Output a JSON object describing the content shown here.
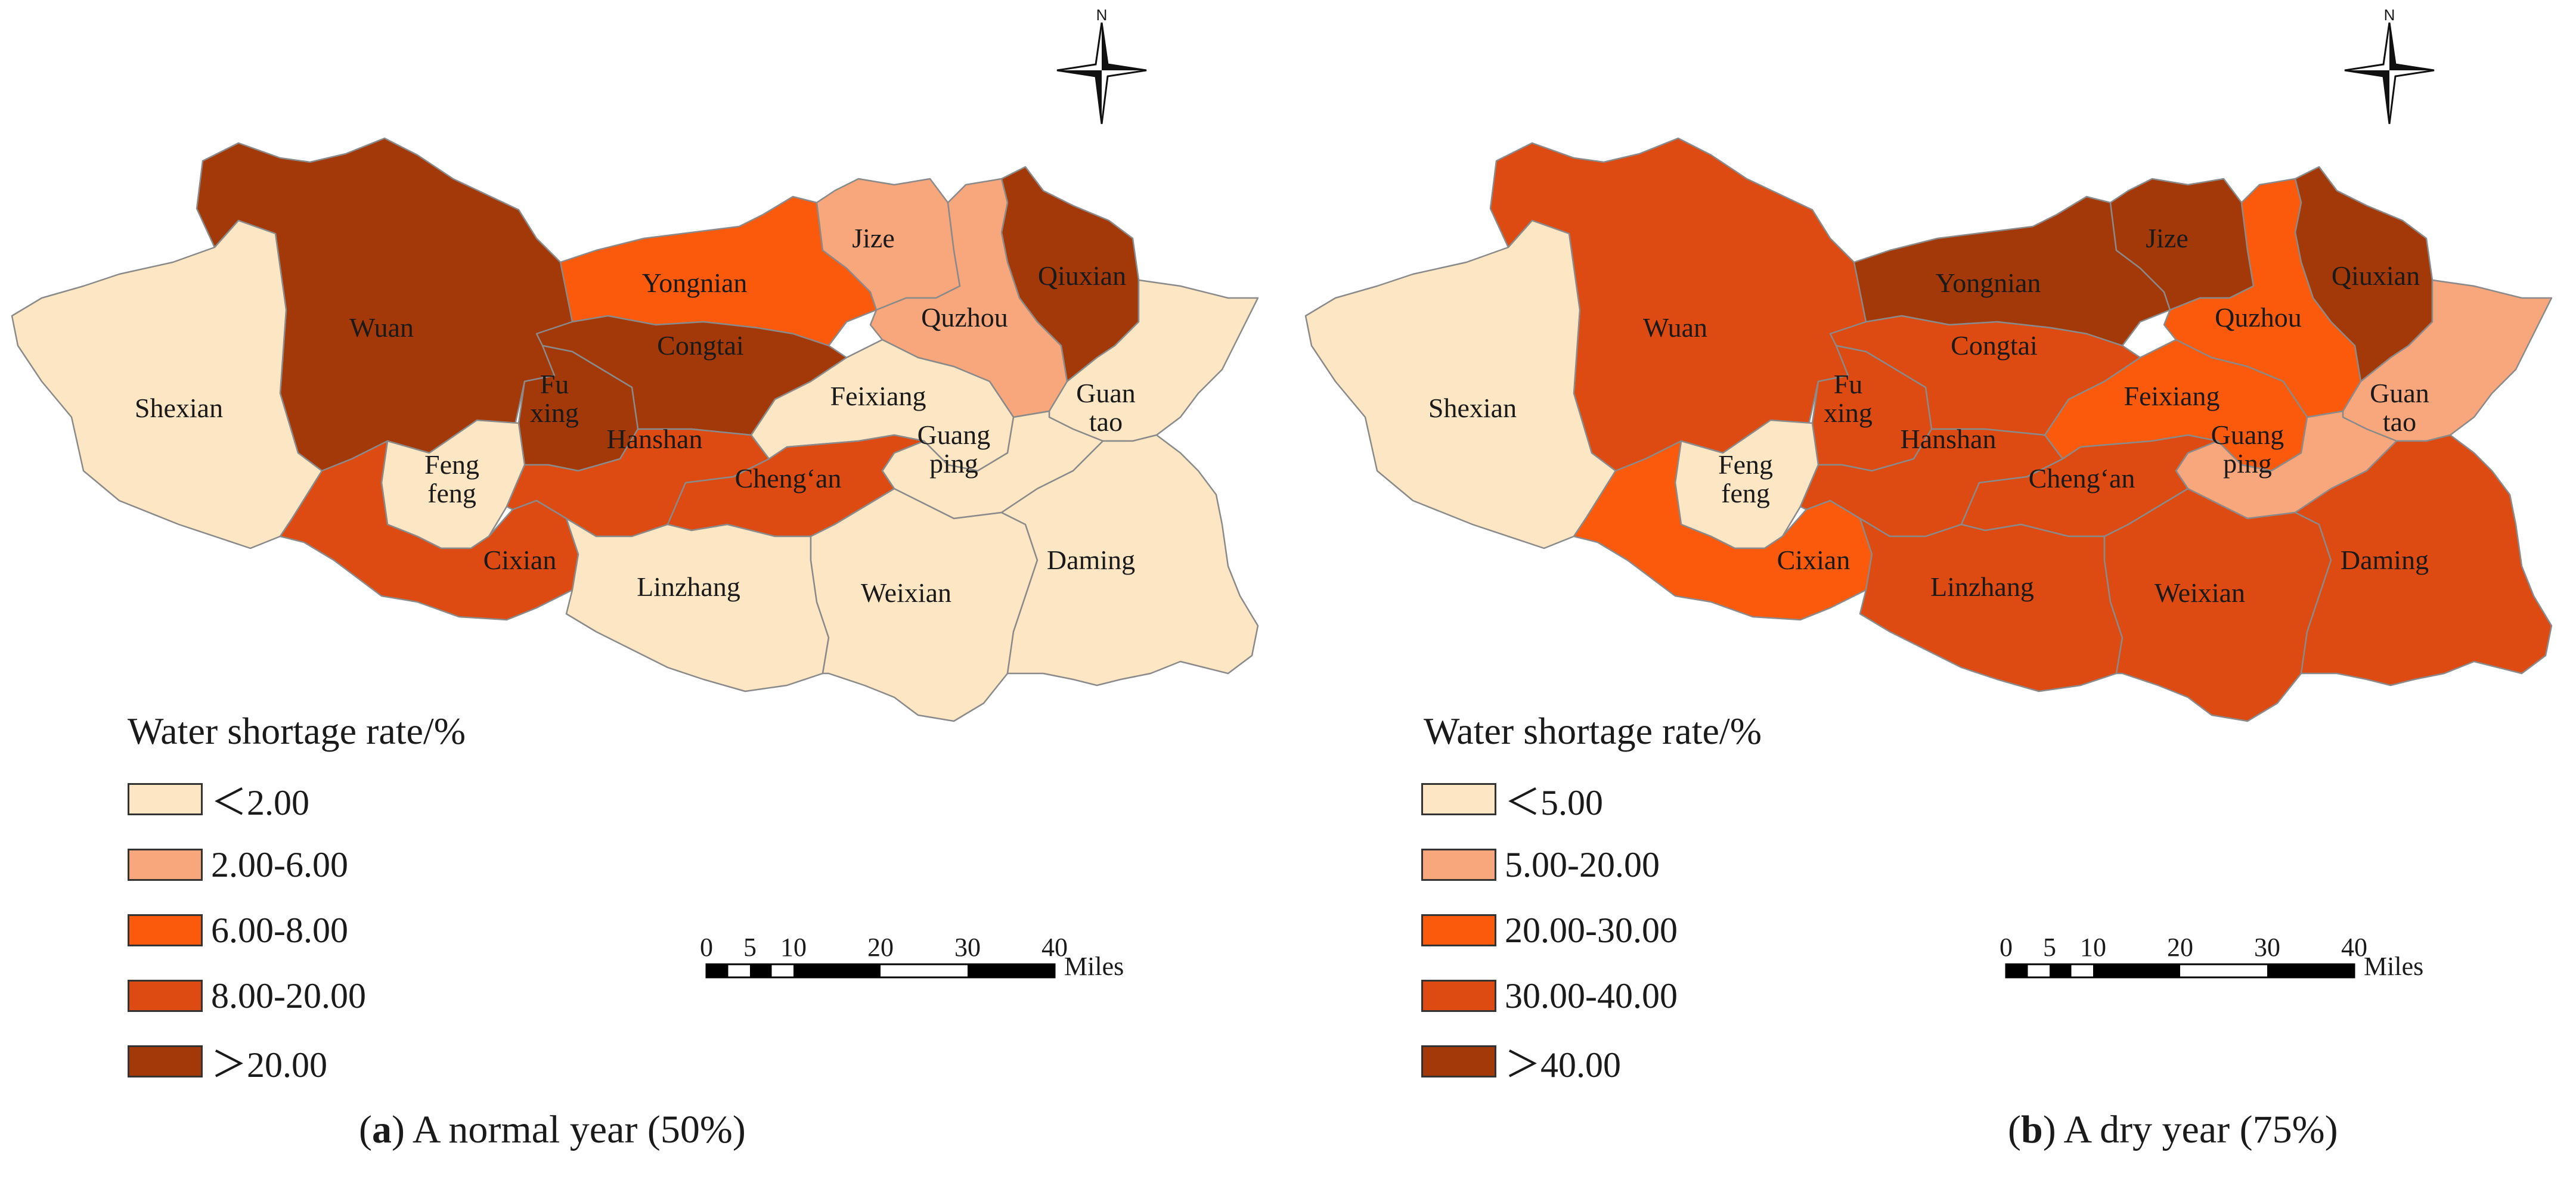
{
  "panels": [
    {
      "id": "a",
      "caption_letter": "a",
      "caption_text": " A normal year (50%)",
      "legend_title": "Water shortage rate/%",
      "legend": [
        {
          "label": "<2.00",
          "color": "#fde6c3"
        },
        {
          "label": "2.00-6.00",
          "color": "#f8a67c"
        },
        {
          "label": "6.00-8.00",
          "color": "#fb5a0c"
        },
        {
          "label": "8.00-20.00",
          "color": "#dd4a12"
        },
        {
          "label": ">20.00",
          "color": "#a33808"
        }
      ],
      "counties": [
        {
          "name": "Wuan",
          "cls": 4
        },
        {
          "name": "Shexian",
          "cls": 0
        },
        {
          "name": "Yongnian",
          "cls": 2
        },
        {
          "name": "Jize",
          "cls": 1
        },
        {
          "name": "Qiuxian",
          "cls": 4
        },
        {
          "name": "Quzhou",
          "cls": 1
        },
        {
          "name": "Congtai",
          "cls": 4
        },
        {
          "name": "Fu xing",
          "cls": 4
        },
        {
          "name": "Feng feng",
          "cls": 0
        },
        {
          "name": "Hanshan",
          "cls": 3
        },
        {
          "name": "Feixiang",
          "cls": 0
        },
        {
          "name": "Guan tao",
          "cls": 0
        },
        {
          "name": "Guang ping",
          "cls": 0
        },
        {
          "name": "Cheng'an",
          "cls": 3
        },
        {
          "name": "Cixian",
          "cls": 3
        },
        {
          "name": "Linzhang",
          "cls": 0
        },
        {
          "name": "Weixian",
          "cls": 0
        },
        {
          "name": "Daming",
          "cls": 0
        }
      ]
    },
    {
      "id": "b",
      "caption_letter": "b",
      "caption_text": " A dry year (75%)",
      "legend_title": "Water shortage rate/%",
      "legend": [
        {
          "label": "<5.00",
          "color": "#fde6c3"
        },
        {
          "label": "5.00-20.00",
          "color": "#f8a67c"
        },
        {
          "label": "20.00-30.00",
          "color": "#fb5a0c"
        },
        {
          "label": "30.00-40.00",
          "color": "#dd4a12"
        },
        {
          "label": ">40.00",
          "color": "#a33808"
        }
      ],
      "counties": [
        {
          "name": "Wuan",
          "cls": 3
        },
        {
          "name": "Shexian",
          "cls": 0
        },
        {
          "name": "Yongnian",
          "cls": 4
        },
        {
          "name": "Jize",
          "cls": 4
        },
        {
          "name": "Qiuxian",
          "cls": 4
        },
        {
          "name": "Quzhou",
          "cls": 2
        },
        {
          "name": "Congtai",
          "cls": 3
        },
        {
          "name": "Fu xing",
          "cls": 3
        },
        {
          "name": "Feng feng",
          "cls": 0
        },
        {
          "name": "Hanshan",
          "cls": 3
        },
        {
          "name": "Feixiang",
          "cls": 2
        },
        {
          "name": "Guan tao",
          "cls": 1
        },
        {
          "name": "Guang ping",
          "cls": 1
        },
        {
          "name": "Cheng'an",
          "cls": 3
        },
        {
          "name": "Cixian",
          "cls": 2
        },
        {
          "name": "Linzhang",
          "cls": 3
        },
        {
          "name": "Weixian",
          "cls": 3
        },
        {
          "name": "Daming",
          "cls": 3
        }
      ]
    }
  ],
  "scale_bar": {
    "ticks": [
      "0",
      "5",
      "10",
      "20",
      "30",
      "40"
    ],
    "unit": "Miles"
  },
  "north_label": "N"
}
